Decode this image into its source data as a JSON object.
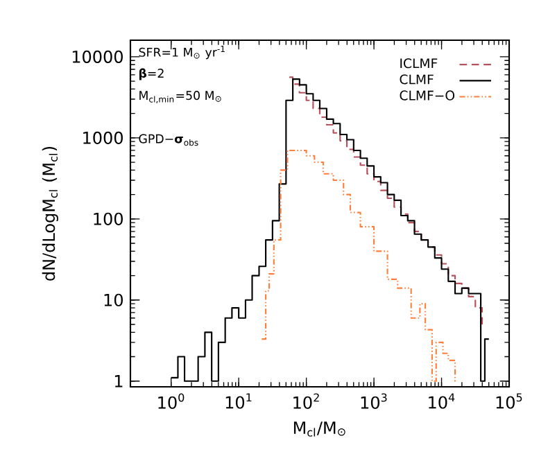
{
  "chart_data": {
    "type": "step",
    "xlabel": "M$_{cl}$/M$_{⊙}$",
    "ylabel": "dN/dLogM$_{cl}$ (M$_{cl}$)",
    "annotations": [
      "SFR=1 M$_{⊙}$ yr$^{-1}$",
      "**β**=2",
      "M$_{cl,min}$=50 M$_{⊙}$",
      "GPD−**σ**$_{obs}$"
    ],
    "log": "xy",
    "xlim": [
      0.25,
      100000
    ],
    "ylim": [
      0.85,
      16000
    ],
    "xticks": [
      {
        "value": 1,
        "label": "10$^{0}$"
      },
      {
        "value": 10,
        "label": "10$^{1}$"
      },
      {
        "value": 100,
        "label": "10$^{2}$"
      },
      {
        "value": 1000,
        "label": "10$^{3}$"
      },
      {
        "value": 10000,
        "label": "10$^{4}$"
      },
      {
        "value": 100000,
        "label": "10$^{5}$"
      }
    ],
    "yticks": [
      1,
      10,
      100,
      1000,
      10000
    ],
    "legend": "top right",
    "series": [
      {
        "name": "ICLMF",
        "color": "#b8505c",
        "line_style": "dashed",
        "x": [
          56,
          63,
          79,
          100,
          126,
          158,
          200,
          251,
          316,
          398,
          501,
          631,
          794,
          1000,
          1259,
          1585,
          1995,
          2512,
          3162,
          3981,
          5012,
          6310,
          7943,
          10000,
          12589,
          15849,
          19953,
          25119,
          31623,
          39811
        ],
        "values": [
          5600,
          4600,
          3600,
          2900,
          2300,
          1800,
          1450,
          1150,
          920,
          720,
          580,
          460,
          360,
          290,
          225,
          180,
          140,
          115,
          90,
          70,
          55,
          45,
          36,
          28,
          20,
          16,
          14,
          11,
          8,
          5
        ]
      },
      {
        "name": "CLMF",
        "color": "#000000",
        "line_style": "solid",
        "x": [
          1,
          1.26,
          1.58,
          2,
          2.51,
          3.16,
          3.98,
          5.01,
          6.31,
          7.94,
          10,
          12.6,
          15.8,
          20,
          25.1,
          31.6,
          39.8,
          50.1,
          63.1,
          79.4,
          100,
          126,
          158,
          200,
          251,
          316,
          398,
          501,
          631,
          794,
          1000,
          1259,
          1585,
          1995,
          2512,
          3162,
          3981,
          5012,
          6310,
          7943,
          10000,
          12589,
          15849,
          19953,
          25119,
          38019,
          43652,
          50119
        ],
        "values": [
          1.1,
          2,
          1,
          1,
          2,
          4,
          1,
          3,
          6,
          8,
          6,
          10,
          20,
          26,
          55,
          95,
          270,
          2900,
          5300,
          4500,
          3500,
          2900,
          2300,
          1700,
          1500,
          1100,
          950,
          700,
          560,
          450,
          330,
          280,
          200,
          170,
          110,
          95,
          65,
          55,
          45,
          33,
          24,
          17,
          12,
          14,
          12,
          1,
          3.3,
          3.3
        ]
      },
      {
        "name": "CLMF−O",
        "color": "#ff7f3a",
        "line_style": "dashdotdotted",
        "x": [
          21.9,
          25.1,
          28.2,
          33.1,
          41.7,
          52.5,
          100,
          132,
          178,
          251,
          355,
          447,
          631,
          1000,
          1585,
          2239,
          3548,
          4786,
          5754,
          7244,
          8318,
          10471,
          12589,
          15849,
          16596
        ],
        "values": [
          3.3,
          13,
          21,
          55,
          400,
          700,
          600,
          500,
          360,
          300,
          200,
          120,
          80,
          40,
          18,
          14,
          6,
          9,
          4.3,
          1,
          3,
          2.2,
          1.8,
          1,
          1
        ]
      }
    ]
  }
}
